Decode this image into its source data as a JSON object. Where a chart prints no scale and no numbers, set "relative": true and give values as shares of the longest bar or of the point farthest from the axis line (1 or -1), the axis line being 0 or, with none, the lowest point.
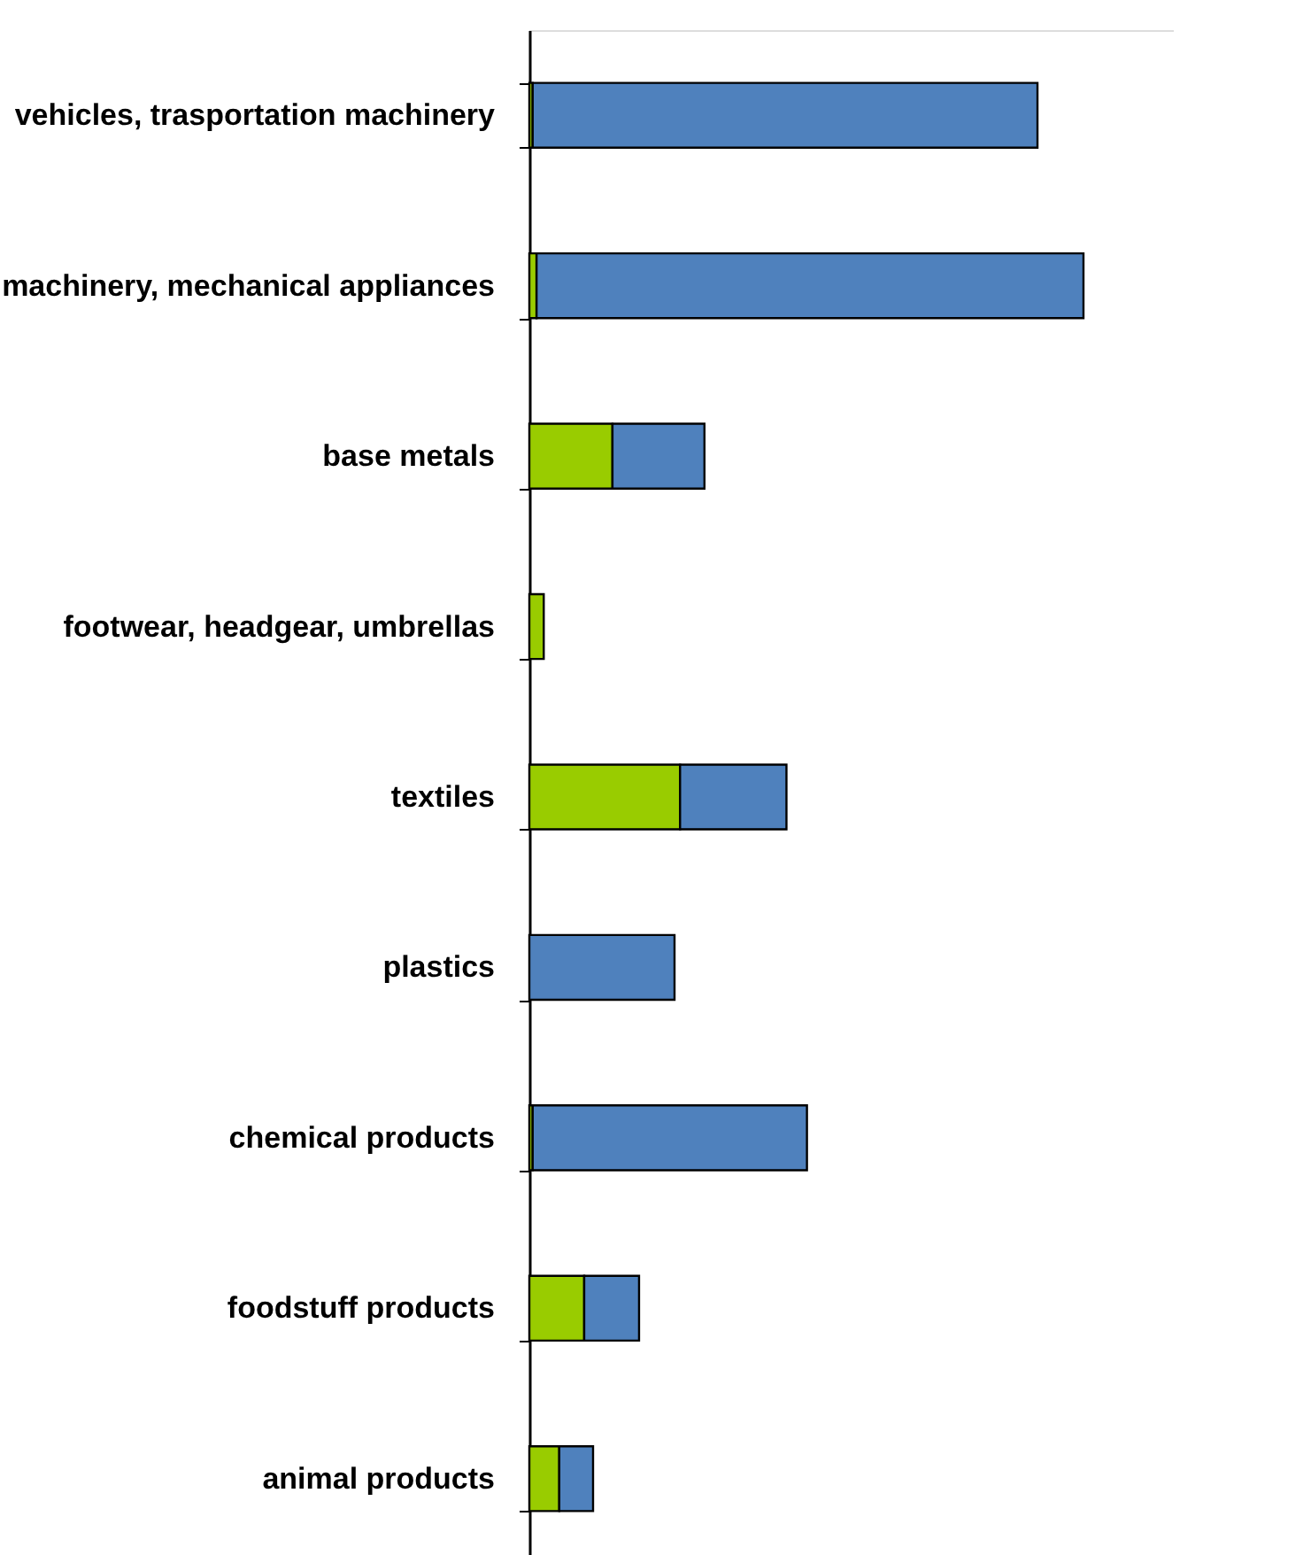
{
  "chart_data": {
    "type": "bar",
    "orientation": "horizontal",
    "stacked": true,
    "relative": true,
    "legend": false,
    "grid": false,
    "tick_labels": "y",
    "categories": [
      "vehicles, trasportation machinery",
      "machinery, mechanical appliances",
      "base metals",
      "footwear, headgear, umbrellas",
      "textiles",
      "plastics",
      "chemical products",
      "foodstuff products",
      "animal products"
    ],
    "series": [
      {
        "color": "#99cc00",
        "values": [
          0.006,
          0.013,
          0.15,
          0.026,
          0.272,
          null,
          0.006,
          0.099,
          0.054
        ]
      },
      {
        "color": "#4f81bd",
        "values": [
          0.911,
          0.987,
          0.166,
          null,
          0.192,
          0.262,
          0.495,
          0.099,
          0.061
        ]
      }
    ]
  }
}
